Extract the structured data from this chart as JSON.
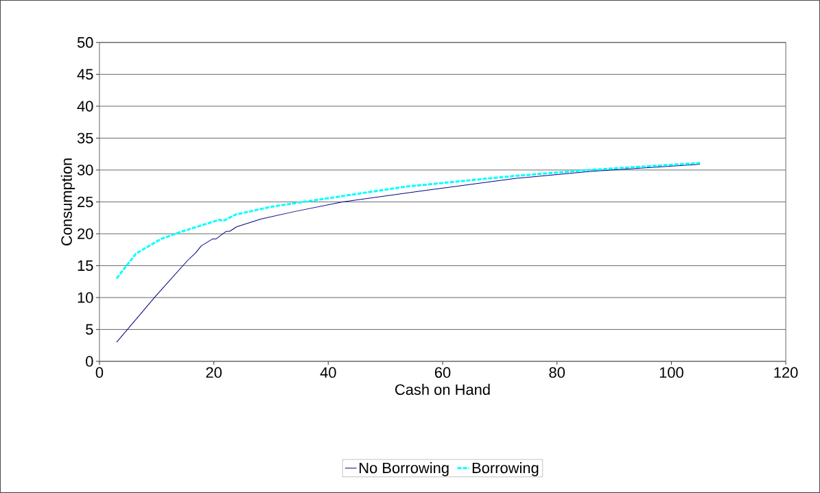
{
  "chart_data": {
    "type": "line",
    "xlabel": "Cash on Hand",
    "ylabel": "Consumption",
    "xlim": [
      0,
      120
    ],
    "xticks": [
      0,
      20,
      40,
      60,
      80,
      100,
      120
    ],
    "ylim": [
      0,
      50
    ],
    "yticks": [
      0,
      5,
      10,
      15,
      20,
      25,
      30,
      35,
      40,
      45,
      50
    ],
    "grid": "y",
    "legend": "bottom",
    "marker": "none",
    "series": [
      {
        "name": "No Borrowing",
        "color": "#000080",
        "line_style": "solid",
        "x": [
          3,
          9.8,
          15.4,
          16.8,
          17.8,
          19.8,
          20.4,
          22.2,
          22.8,
          24,
          28.2,
          34.2,
          42.5,
          56.3,
          72.9,
          86.2,
          105
        ],
        "values": [
          3,
          10.2,
          15.8,
          17,
          18.1,
          19.2,
          19.2,
          20.4,
          20.4,
          21.1,
          22.3,
          23.5,
          25,
          26.7,
          28.7,
          29.8,
          30.9
        ]
      },
      {
        "name": "Borrowing",
        "color": "#00ffff",
        "line_style": "dashed",
        "x": [
          3,
          6.4,
          10.8,
          14.2,
          21,
          21.6,
          23.8,
          29.8,
          34.2,
          53.6,
          72.9,
          85.6,
          105
        ],
        "values": [
          13,
          16.9,
          19.2,
          20.3,
          22.2,
          22,
          23,
          24.2,
          24.8,
          27.4,
          29.1,
          30,
          31.1
        ]
      }
    ]
  }
}
